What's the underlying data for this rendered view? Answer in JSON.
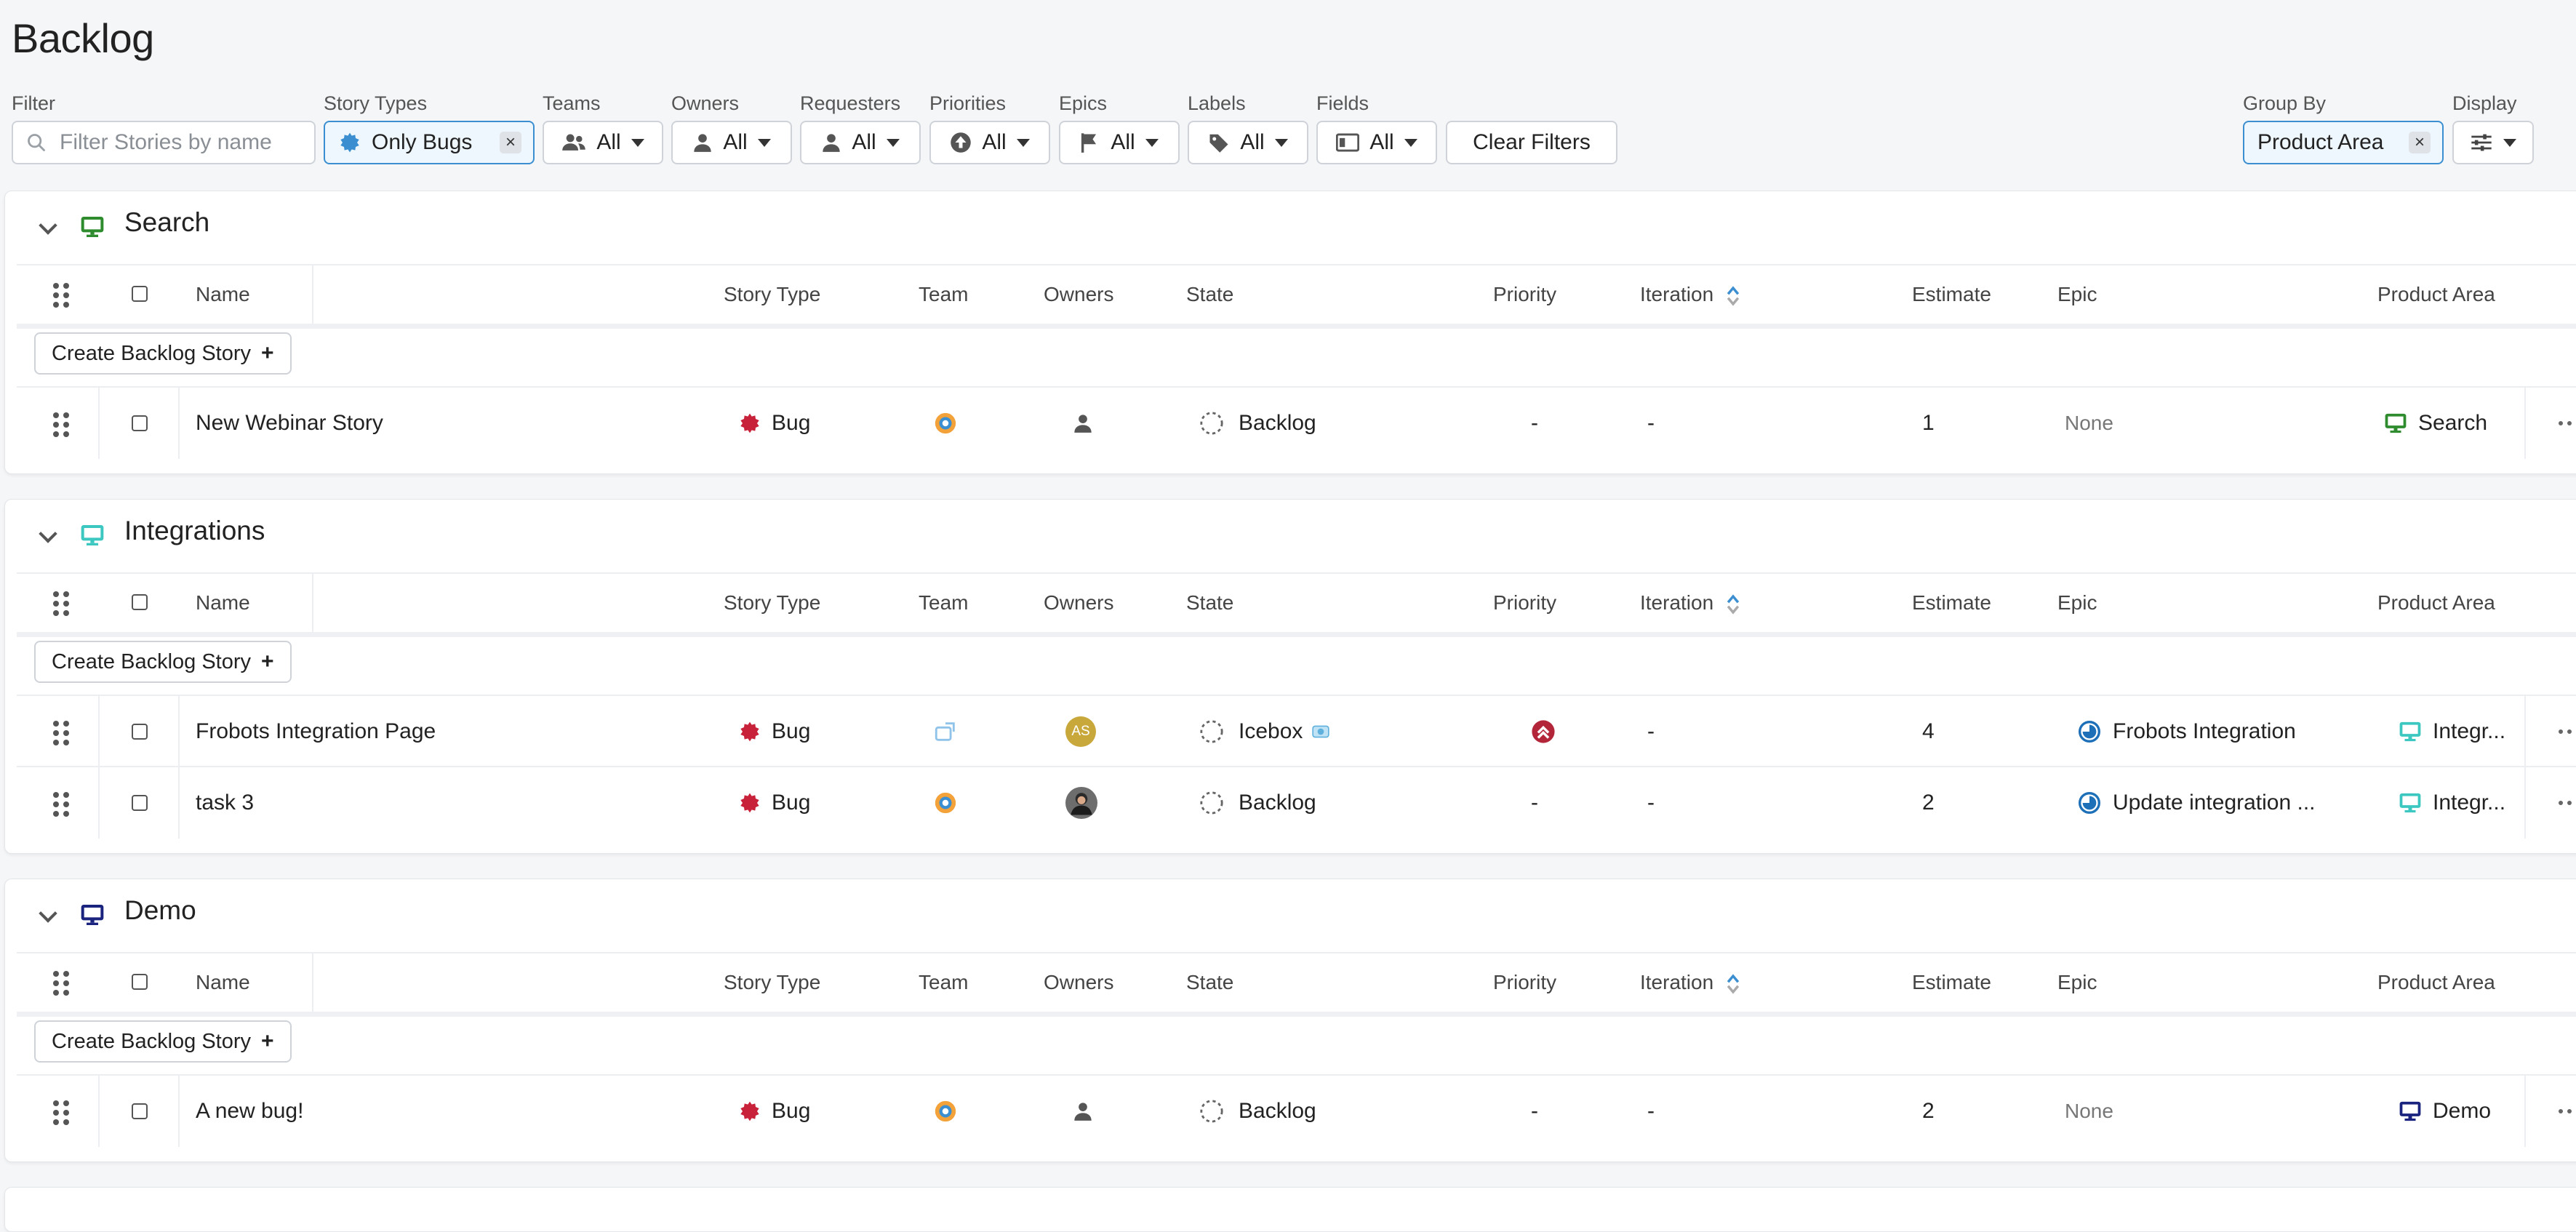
{
  "page": {
    "title": "Backlog"
  },
  "filters": {
    "filter": {
      "label": "Filter",
      "placeholder": "Filter Stories by name"
    },
    "story_types": {
      "label": "Story Types",
      "value": "Only Bugs",
      "icon": "bug-icon"
    },
    "teams": {
      "label": "Teams",
      "value": "All",
      "icon": "team-icon"
    },
    "owners": {
      "label": "Owners",
      "value": "All",
      "icon": "person-icon"
    },
    "requesters": {
      "label": "Requesters",
      "value": "All",
      "icon": "person-icon"
    },
    "priorities": {
      "label": "Priorities",
      "value": "All",
      "icon": "priority-icon"
    },
    "epics": {
      "label": "Epics",
      "value": "All",
      "icon": "flag-icon"
    },
    "labels": {
      "label": "Labels",
      "value": "All",
      "icon": "tag-icon"
    },
    "fields": {
      "label": "Fields",
      "value": "All",
      "icon": "field-icon"
    },
    "clear": "Clear Filters",
    "group_by": {
      "label": "Group By",
      "value": "Product Area"
    },
    "display": {
      "label": "Display",
      "icon": "sliders-icon"
    }
  },
  "columns": {
    "name": "Name",
    "story_type": "Story Type",
    "team": "Team",
    "owners": "Owners",
    "state": "State",
    "priority": "Priority",
    "iteration": "Iteration",
    "estimate": "Estimate",
    "epic": "Epic",
    "product_area": "Product Area"
  },
  "create_label": "Create Backlog Story",
  "colors": {
    "accent": "#3b8fd1",
    "bug": "#c8223a",
    "search": "#2e8b2e",
    "integrations": "#3cc8c0",
    "demo": "#1a237e",
    "epic": "#1d6fb8",
    "priority_high": "#b3263a"
  },
  "sections": [
    {
      "title": "Search",
      "icon": "monitor-icon",
      "color": "#2e8b2e",
      "rows": [
        {
          "name": "New Webinar Story",
          "type": "Bug",
          "team_icon": "team-avatar-icon",
          "owner": "person-icon",
          "state": "Backlog",
          "priority": "-",
          "iteration": "-",
          "estimate": "1",
          "epic": "None",
          "area": "Search"
        }
      ]
    },
    {
      "title": "Integrations",
      "icon": "monitor-icon",
      "color": "#3cc8c0",
      "rows": [
        {
          "name": "Frobots Integration Page",
          "type": "Bug",
          "team_icon": "team-avatar-icon",
          "owner_initials": "AS",
          "state": "Icebox",
          "priority": "high-priority-icon",
          "iteration": "-",
          "estimate": "4",
          "epic": "Frobots Integration",
          "area": "Integr..."
        },
        {
          "name": "task 3",
          "type": "Bug",
          "team_icon": "team-avatar-icon",
          "owner": "photo-avatar",
          "state": "Backlog",
          "priority": "-",
          "iteration": "-",
          "estimate": "2",
          "epic": "Update integration ...",
          "area": "Integr..."
        }
      ]
    },
    {
      "title": "Demo",
      "icon": "monitor-icon",
      "color": "#1a237e",
      "rows": [
        {
          "name": "A new bug!",
          "type": "Bug",
          "team_icon": "team-avatar-icon",
          "owner": "person-icon",
          "state": "Backlog",
          "priority": "-",
          "iteration": "-",
          "estimate": "2",
          "epic": "None",
          "area": "Demo"
        }
      ]
    }
  ]
}
